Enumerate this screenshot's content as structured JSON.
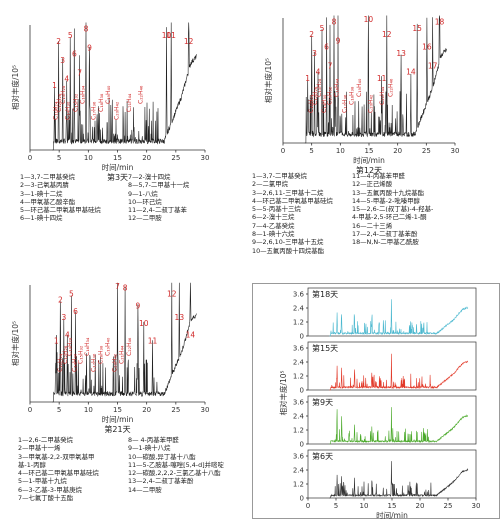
{
  "chart_data": [
    {
      "type": "line",
      "title": "第3天",
      "xlabel": "时间/min",
      "ylabel": "相对丰度/10⁵",
      "xticks": [
        0,
        5,
        10,
        15,
        20,
        25,
        30
      ],
      "yticks": [],
      "peaks": [
        {
          "label": "1",
          "x": 4.2
        },
        {
          "label": "2",
          "x": 4.9
        },
        {
          "label": "3",
          "x": 5.6
        },
        {
          "label": "4",
          "x": 6.3
        },
        {
          "label": "5",
          "x": 6.9
        },
        {
          "label": "6",
          "x": 7.6
        },
        {
          "label": "7",
          "x": 8.5
        },
        {
          "label": "8",
          "x": 9.6
        },
        {
          "label": "9",
          "x": 10.2
        },
        {
          "label": "10",
          "x": 23.4
        },
        {
          "label": "11",
          "x": 24.2
        },
        {
          "label": "12",
          "x": 27.2
        }
      ],
      "rotated_labels": [
        {
          "text": "C₁₁H₂₄",
          "x": 4.7
        },
        {
          "text": "C₁₂H₂₆",
          "x": 5.3
        },
        {
          "text": "C₁₃H₂₈",
          "x": 6.0
        },
        {
          "text": "C₁₄H₃₀",
          "x": 6.8
        },
        {
          "text": "C₁₅H₃₂",
          "x": 8.1
        },
        {
          "text": "C₁₆H₃₄",
          "x": 9.3
        },
        {
          "text": "C₁₇H₃₆",
          "x": 11.2
        },
        {
          "text": "C₁₈H₃₈",
          "x": 12.5
        },
        {
          "text": "C₁₉H₄₀",
          "x": 13.7
        },
        {
          "text": "C₂₀H₄₂",
          "x": 15.2
        },
        {
          "text": "C₂₁H₄₄",
          "x": 17.3
        },
        {
          "text": "C₂₂H₄₆",
          "x": 19.3
        }
      ],
      "legend": [
        [
          "1—3,7-二甲基癸烷",
          "7—2-溴十四烷"
        ],
        [
          "2—3-己氧基丙腈",
          "8—5,7-二甲基十一烷"
        ],
        [
          "3—1-碘十二烷",
          "9—1-八烷"
        ],
        [
          "4—甲氧基乙酸辛酯",
          "10—环己烷"
        ],
        [
          "5—环己基二甲氧基甲基硅烷",
          "11—2,4-二叔丁基苯"
        ],
        [
          "6—1-碘十四烷",
          "12—二甲胺"
        ]
      ]
    },
    {
      "type": "line",
      "title": "第12天",
      "xlabel": "时间/min",
      "ylabel": "相对丰度/10⁵",
      "xticks": [
        0,
        5,
        10,
        15,
        20,
        25,
        30
      ],
      "yticks": [],
      "peaks": [
        {
          "label": "1",
          "x": 4.3
        },
        {
          "label": "2",
          "x": 5.0
        },
        {
          "label": "3",
          "x": 5.5
        },
        {
          "label": "4",
          "x": 6.1
        },
        {
          "label": "5",
          "x": 6.8
        },
        {
          "label": "6",
          "x": 7.6
        },
        {
          "label": "7",
          "x": 8.2
        },
        {
          "label": "8",
          "x": 8.9
        },
        {
          "label": "9",
          "x": 9.6
        },
        {
          "label": "10",
          "x": 14.9
        },
        {
          "label": "11",
          "x": 17.2
        },
        {
          "label": "12",
          "x": 18.1
        },
        {
          "label": "13",
          "x": 20.6
        },
        {
          "label": "14",
          "x": 22.3
        },
        {
          "label": "15",
          "x": 23.4
        },
        {
          "label": "16",
          "x": 25.1
        },
        {
          "label": "17",
          "x": 26.1
        },
        {
          "label": "18",
          "x": 27.3
        }
      ],
      "rotated_labels": [
        {
          "text": "C₁₁H₂₄",
          "x": 5.2
        },
        {
          "text": "C₁₂H₂₆",
          "x": 5.9
        },
        {
          "text": "C₁₃H₂₈",
          "x": 6.6
        },
        {
          "text": "C₁₄H₃₀",
          "x": 7.5
        },
        {
          "text": "C₁₅H₃₂",
          "x": 8.5
        },
        {
          "text": "C₁₆H₃₄",
          "x": 9.7
        },
        {
          "text": "C₁₇H₃₆",
          "x": 11.1
        },
        {
          "text": "C₁₈H₃₈",
          "x": 12.3
        },
        {
          "text": "C₁₉H₄₀",
          "x": 13.6
        },
        {
          "text": "C₂₀H₄₂",
          "x": 15.6
        },
        {
          "text": "C₂₁H₄₄",
          "x": 17.6
        },
        {
          "text": "C₂₂H₄₆",
          "x": 19.1
        }
      ],
      "legend": [
        [
          "1—3,7-二甲基癸烷",
          "11—4-丙基苯甲醛"
        ],
        [
          "2—二氯甲烷",
          "12—正己烯酸"
        ],
        [
          "3—2,6,11-三甲基十二烷",
          "13—五氟丙酸十九烷基酯"
        ],
        [
          "4—环己基二甲氧基甲基硅烷",
          "14—5-甲基-2-吡嗪甲醇"
        ],
        [
          "5—5-丙基十三烷",
          "15—2,6-二(叔丁基)-4-羟基-"
        ],
        [
          "6—2-溴十三烷",
          "    4-甲基-2,5-环己二烯-1-酮"
        ],
        [
          "7—4-乙基癸烷",
          "16—二十三烯"
        ],
        [
          "8—1-碘十六烷",
          "17—2,4-二叔丁基苯酚"
        ],
        [
          "9—2,6,10-三甲基十五烷",
          "18—N,N-二甲基乙酰胺"
        ],
        [
          "10—五氟丙酸十四烷基酯",
          ""
        ]
      ]
    },
    {
      "type": "line",
      "title": "第21天",
      "xlabel": "时间/min",
      "ylabel": "相对丰度/10⁵",
      "xticks": [
        0,
        5,
        10,
        15,
        20,
        25,
        30
      ],
      "yticks": [],
      "peaks": [
        {
          "label": "1",
          "x": 4.5
        },
        {
          "label": "2",
          "x": 5.2
        },
        {
          "label": "3",
          "x": 5.8
        },
        {
          "label": "4",
          "x": 6.4
        },
        {
          "label": "5",
          "x": 7.1
        },
        {
          "label": "6",
          "x": 7.8
        },
        {
          "label": "7",
          "x": 15.0
        },
        {
          "label": "8",
          "x": 16.3
        },
        {
          "label": "9",
          "x": 18.5
        },
        {
          "label": "10",
          "x": 19.5
        },
        {
          "label": "11",
          "x": 21.0
        },
        {
          "label": "12",
          "x": 24.3
        },
        {
          "label": "13",
          "x": 25.6
        },
        {
          "label": "14",
          "x": 27.5
        }
      ],
      "rotated_labels": [
        {
          "text": "C₁₁H₂₄",
          "x": 5.5
        },
        {
          "text": "C₁₂H₂₆",
          "x": 6.3
        },
        {
          "text": "C₁₃H₂₈",
          "x": 7.1
        },
        {
          "text": "C₁₄H₃₀",
          "x": 8.0
        },
        {
          "text": "C₁₅H₃₂",
          "x": 9.0
        },
        {
          "text": "C₁₆H₃₄",
          "x": 10.1
        },
        {
          "text": "C₁₇H₃₆",
          "x": 11.2
        },
        {
          "text": "C₁₈H₃₈",
          "x": 12.4
        },
        {
          "text": "C₁₉H₄₀",
          "x": 13.6
        },
        {
          "text": "C₂₀H₄₂",
          "x": 14.8
        },
        {
          "text": "C₂₁H₄₄",
          "x": 16.0
        },
        {
          "text": "C₂₂H₄₆",
          "x": 17.3
        }
      ],
      "legend": [
        [
          "1—2,6-二甲基癸烷",
          "8— 4-丙基苯甲醛"
        ],
        [
          "2—甲基十一烯",
          "9—1-碘十八烷"
        ],
        [
          "3—甲氧基-2,2-双甲氧基甲",
          "10—碳酸,异丁基十八酯"
        ],
        [
          "    基-1-丙醇",
          "11—5-乙胺基-噻唑[5,4-d]并嘧啶"
        ],
        [
          "4—环己基二甲氧基甲基硅烷",
          "12—碳酸,2,2,2-三氯乙基十八酯"
        ],
        [
          "5—1-甲基十九烷",
          "13—2,4-二叔丁基苯酚"
        ],
        [
          "6—3-乙基-3-甲基庚烷",
          "14—二甲胺"
        ],
        [
          "7—七氟丁酸十五酯",
          ""
        ]
      ]
    },
    {
      "type": "line",
      "xlabel": "时间/min",
      "ylabel": "相对丰度/10⁵",
      "xticks": [
        0,
        5,
        10,
        15,
        20,
        25,
        30
      ],
      "yticks": [
        0,
        1.2,
        2.4,
        3.6
      ],
      "series": [
        {
          "name": "第18天",
          "color": "#4bb8cf"
        },
        {
          "name": "第15天",
          "color": "#e23a2a"
        },
        {
          "name": "第9天",
          "color": "#4caa2c"
        },
        {
          "name": "第6天",
          "color": "#333333"
        }
      ]
    }
  ]
}
